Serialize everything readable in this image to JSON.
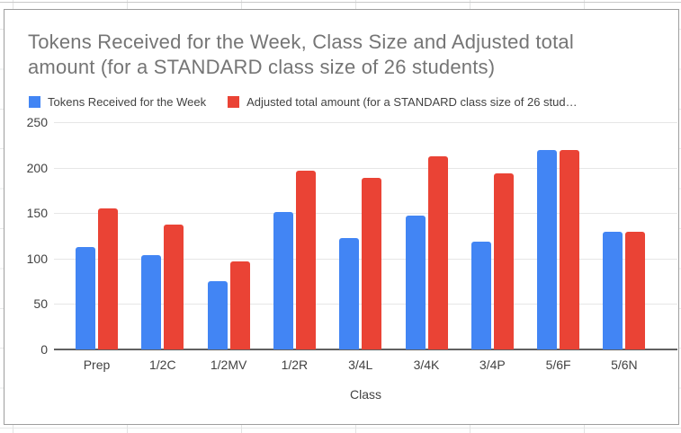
{
  "chart": {
    "title_line1": "Tokens Received for the Week, Class Size and Adjusted total",
    "title_line2": "amount (for a STANDARD class size of 26 students)",
    "x_axis_title": "Class"
  },
  "legend": {
    "items": [
      {
        "label": "Tokens Received for the Week"
      },
      {
        "label": "Adjusted total amount (for a STANDARD class size of 26 stud…"
      }
    ]
  },
  "chart_data": {
    "type": "bar",
    "title": "Tokens Received for the Week, Class Size and Adjusted total amount (for a STANDARD class size of 26 students)",
    "categories": [
      "Prep",
      "1/2C",
      "1/2MV",
      "1/2R",
      "3/4L",
      "3/4K",
      "3/4P",
      "5/6F",
      "5/6N"
    ],
    "series": [
      {
        "name": "Tokens Received for the Week",
        "color": "#4285F4",
        "values": [
          113,
          104,
          75,
          151,
          123,
          147,
          119,
          219,
          129
        ]
      },
      {
        "name": "Adjusted total amount (for a STANDARD class size of 26 stud…",
        "color": "#EA4335",
        "values": [
          155,
          137,
          97,
          197,
          189,
          212,
          194,
          219,
          129
        ]
      }
    ],
    "xlabel": "Class",
    "ylabel": "",
    "ylim": [
      0,
      250
    ],
    "yticks": [
      0,
      50,
      100,
      150,
      200,
      250
    ],
    "grid": true,
    "legend_position": "top"
  },
  "colors": {
    "series_blue": "#4285F4",
    "series_red": "#EA4335",
    "title_text": "#757575",
    "axis_text": "#424242",
    "gridline": "#e6e6e6"
  }
}
